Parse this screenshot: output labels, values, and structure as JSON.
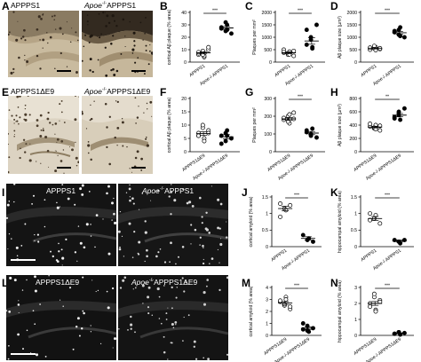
{
  "figure": {
    "panels": {
      "A": {
        "letter": "A",
        "left_title": "APPPS1",
        "right_title_prefix": "Apoe",
        "right_title_sup": "-/-",
        "right_title_suffix": "APPPS1"
      },
      "E": {
        "letter": "E",
        "left_title": "APPPS1ΔE9",
        "right_title_prefix": "Apoe",
        "right_title_sup": "-/-",
        "right_title_suffix": "APPPS1ΔE9"
      },
      "I": {
        "letter": "I",
        "left_title": "APPPS1",
        "right_title_prefix": "Apoe",
        "right_title_sup": "-/-",
        "right_title_suffix": "APPPS1"
      },
      "L": {
        "letter": "L",
        "left_title": "APPPS1ΔE9",
        "right_title_prefix": "Apoe",
        "right_title_sup": "-/-",
        "right_title_suffix": "APPPS1ΔE9"
      }
    }
  },
  "chart_data": [
    {
      "id": "B",
      "type": "scatter",
      "ylabel": "cortical Aβ plaque (% area)",
      "categories": [
        "APPPS1",
        "Apoe-/-APPPS1"
      ],
      "ylim": [
        0,
        40
      ],
      "yticks": [
        0,
        10,
        20,
        30,
        40
      ],
      "significance": "***",
      "series": [
        {
          "values": [
            6,
            8,
            4,
            10,
            7,
            9,
            5,
            12,
            8,
            6
          ]
        },
        {
          "values": [
            27,
            25,
            30,
            23,
            28,
            32,
            26
          ]
        }
      ],
      "means": [
        7.5,
        27.5
      ],
      "sems": [
        0.9,
        1.2
      ]
    },
    {
      "id": "C",
      "type": "scatter",
      "ylabel": "Plaques per mm²",
      "categories": [
        "APPPS1",
        "Apoe-/-APPPS1"
      ],
      "ylim": [
        0,
        2000
      ],
      "yticks": [
        0,
        500,
        1000,
        1500,
        2000
      ],
      "significance": "***",
      "series": [
        {
          "values": [
            380,
            300,
            420,
            250,
            500,
            350,
            310,
            450,
            400
          ]
        },
        {
          "values": [
            1300,
            900,
            600,
            1500,
            700,
            1000,
            550
          ]
        }
      ],
      "means": [
        375,
        850
      ],
      "sems": [
        40,
        130
      ]
    },
    {
      "id": "D",
      "type": "scatter",
      "ylabel": "Aβ plaque size (µm²)",
      "categories": [
        "APPPS1",
        "Apoe-/-APPPS1"
      ],
      "ylim": [
        0,
        2000
      ],
      "yticks": [
        0,
        500,
        1000,
        1500,
        2000
      ],
      "significance": "***",
      "series": [
        {
          "values": [
            500,
            550,
            600,
            520,
            580,
            650,
            480,
            560
          ]
        },
        {
          "values": [
            1200,
            1100,
            1400,
            1000,
            1250,
            1300,
            1050
          ]
        }
      ],
      "means": [
        560,
        1180
      ],
      "sems": [
        30,
        55
      ]
    },
    {
      "id": "F",
      "type": "scatter",
      "ylabel": "cortical Aβ plaque (% area)",
      "categories": [
        "APPPS1ΔE9",
        "Apoe-/-APPPS1ΔE9"
      ],
      "ylim": [
        0,
        20
      ],
      "yticks": [
        0,
        5,
        10,
        15,
        20
      ],
      "significance": "",
      "series": [
        {
          "values": [
            7,
            9,
            5,
            8,
            6,
            10,
            4,
            7,
            6
          ]
        },
        {
          "values": [
            6,
            4,
            8,
            5,
            3,
            7,
            6
          ]
        }
      ],
      "means": [
        6.8,
        5.6
      ],
      "sems": [
        0.7,
        0.8
      ]
    },
    {
      "id": "G",
      "type": "scatter",
      "ylabel": "Plaques per mm²",
      "categories": [
        "APPPS1ΔE9",
        "Apoe-/-APPPS1ΔE9"
      ],
      "ylim": [
        0,
        300
      ],
      "yticks": [
        0,
        100,
        200,
        300
      ],
      "significance": "***",
      "series": [
        {
          "values": [
            180,
            200,
            160,
            220,
            190,
            170,
            210,
            185
          ]
        },
        {
          "values": [
            110,
            90,
            130,
            80,
            120,
            100
          ]
        }
      ],
      "means": [
        185,
        105
      ],
      "sems": [
        8,
        9
      ]
    },
    {
      "id": "H",
      "type": "scatter",
      "ylabel": "Aβ plaque size (µm²)",
      "categories": [
        "APPPS1ΔE9",
        "Apoe-/-APPPS1ΔE9"
      ],
      "ylim": [
        0,
        800
      ],
      "yticks": [
        0,
        200,
        400,
        600,
        800
      ],
      "significance": "**",
      "series": [
        {
          "values": [
            380,
            350,
            400,
            320,
            420,
            360,
            340,
            390
          ]
        },
        {
          "values": [
            520,
            600,
            480,
            650,
            500,
            550
          ]
        }
      ],
      "means": [
        370,
        550
      ],
      "sems": [
        12,
        25
      ]
    },
    {
      "id": "J",
      "type": "scatter",
      "ylabel": "cortical amyloid (% area)",
      "categories": [
        "APPPS1",
        "Apoe-/-APPPS1"
      ],
      "ylim": [
        0,
        1.5
      ],
      "yticks": [
        0,
        0.5,
        1.0,
        1.5
      ],
      "significance": "***",
      "series": [
        {
          "values": [
            1.3,
            1.15,
            1.1,
            1.25,
            0.9
          ]
        },
        {
          "values": [
            0.35,
            0.2,
            0.25,
            0.15
          ]
        }
      ],
      "means": [
        1.15,
        0.25
      ],
      "sems": [
        0.07,
        0.05
      ]
    },
    {
      "id": "K",
      "type": "scatter",
      "ylabel": "hippocampal amyloid (% area)",
      "categories": [
        "APPPS1",
        "Apoe-/-APPPS1"
      ],
      "ylim": [
        0,
        1.5
      ],
      "yticks": [
        0,
        0.5,
        1.0,
        1.5
      ],
      "significance": "***",
      "series": [
        {
          "values": [
            1.0,
            0.85,
            0.95,
            0.7,
            0.8
          ]
        },
        {
          "values": [
            0.2,
            0.15,
            0.1,
            0.2
          ]
        }
      ],
      "means": [
        0.85,
        0.17
      ],
      "sems": [
        0.06,
        0.03
      ]
    },
    {
      "id": "M",
      "type": "scatter",
      "ylabel": "cortical amyloid (% area)",
      "categories": [
        "APPPS1ΔE9",
        "Apoe-/-APPPS1ΔE9"
      ],
      "ylim": [
        0,
        4
      ],
      "yticks": [
        0,
        1,
        2,
        3,
        4
      ],
      "significance": "***",
      "series": [
        {
          "values": [
            2.8,
            2.5,
            3.2,
            2.2,
            2.9,
            2.6,
            3.0,
            2.4
          ]
        },
        {
          "values": [
            0.5,
            0.8,
            0.3,
            0.6,
            1.0,
            0.4
          ]
        }
      ],
      "means": [
        2.7,
        0.6
      ],
      "sems": [
        0.12,
        0.1
      ]
    },
    {
      "id": "N",
      "type": "scatter",
      "ylabel": "hippocampal amyloid (% area)",
      "categories": [
        "APPPS1ΔE9",
        "Apoe-/-APPPS1ΔE9"
      ],
      "ylim": [
        0,
        3
      ],
      "yticks": [
        0,
        1,
        2,
        3
      ],
      "significance": "***",
      "series": [
        {
          "values": [
            2.0,
            2.4,
            1.6,
            2.2,
            1.8,
            2.6,
            1.5,
            2.1
          ]
        },
        {
          "values": [
            0.1,
            0.2,
            0.05,
            0.15,
            0.1,
            0.2
          ]
        }
      ],
      "means": [
        2.0,
        0.13
      ],
      "sems": [
        0.12,
        0.03
      ]
    }
  ]
}
